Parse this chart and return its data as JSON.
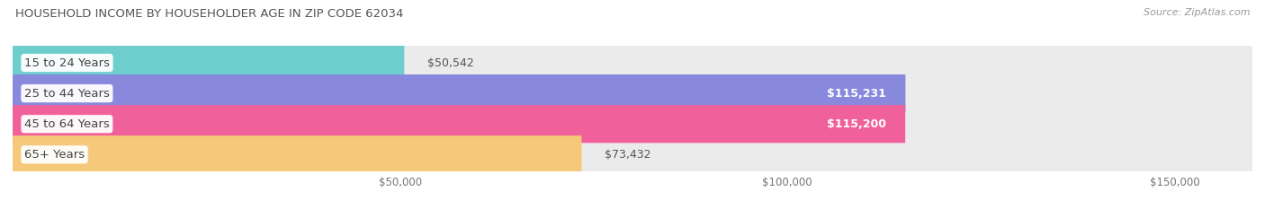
{
  "title": "HOUSEHOLD INCOME BY HOUSEHOLDER AGE IN ZIP CODE 62034",
  "source": "Source: ZipAtlas.com",
  "categories": [
    "15 to 24 Years",
    "25 to 44 Years",
    "45 to 64 Years",
    "65+ Years"
  ],
  "values": [
    50542,
    115231,
    115200,
    73432
  ],
  "bar_colors": [
    "#6ecece",
    "#8888dd",
    "#f0609a",
    "#f5c87a"
  ],
  "bar_bg_color": "#ebebeb",
  "xlim": [
    0,
    160000
  ],
  "xticks": [
    50000,
    100000,
    150000
  ],
  "xtick_labels": [
    "$50,000",
    "$100,000",
    "$150,000"
  ],
  "figsize": [
    14.06,
    2.33
  ],
  "dpi": 100,
  "bar_height": 0.62,
  "background_color": "#ffffff",
  "value_labels": [
    "$50,542",
    "$115,231",
    "$115,200",
    "$73,432"
  ],
  "label_inside": [
    false,
    true,
    true,
    false
  ]
}
